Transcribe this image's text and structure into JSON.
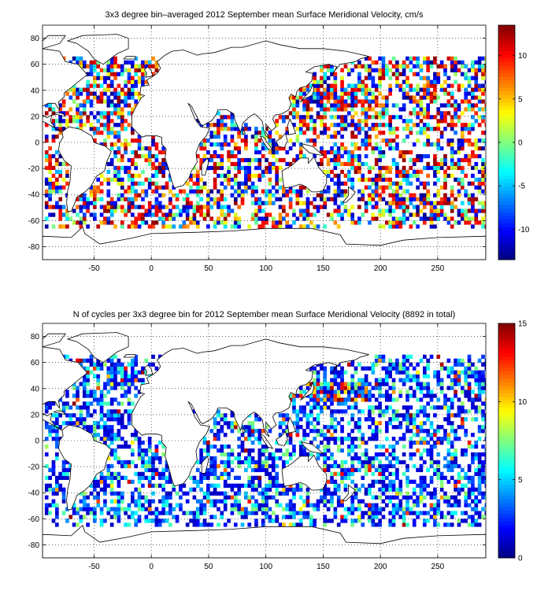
{
  "chart_data": [
    {
      "type": "heatmap",
      "title": "3x3 degree bin–averaged 2012 September mean Surface Meridional Velocity, cm/s",
      "xlim": [
        -95,
        292
      ],
      "ylim": [
        -90,
        90
      ],
      "xticks": [
        -50,
        0,
        50,
        100,
        150,
        200,
        250
      ],
      "yticks": [
        -80,
        -60,
        -40,
        -20,
        0,
        20,
        40,
        60,
        80
      ],
      "grid": true,
      "colorbar": {
        "range": [
          -13.5,
          13.5
        ],
        "ticks": [
          -10,
          -5,
          0,
          5,
          10
        ],
        "colormap": "jet"
      },
      "bin_size_deg": 3
    },
    {
      "type": "heatmap",
      "title": "N of cycles per 3x3 degree bin for 2012 September mean Surface Meridional Velocity (8892 in total)",
      "xlim": [
        -95,
        292
      ],
      "ylim": [
        -90,
        90
      ],
      "xticks": [
        -50,
        0,
        50,
        100,
        150,
        200,
        250
      ],
      "yticks": [
        -80,
        -60,
        -40,
        -20,
        0,
        20,
        40,
        60,
        80
      ],
      "grid": true,
      "colorbar": {
        "range": [
          0,
          15
        ],
        "ticks": [
          0,
          5,
          10,
          15
        ],
        "colormap": "jet"
      },
      "bin_size_deg": 3
    }
  ],
  "colors": {
    "frame": "#000000",
    "land": "#ffffff",
    "grid": "#000000"
  }
}
